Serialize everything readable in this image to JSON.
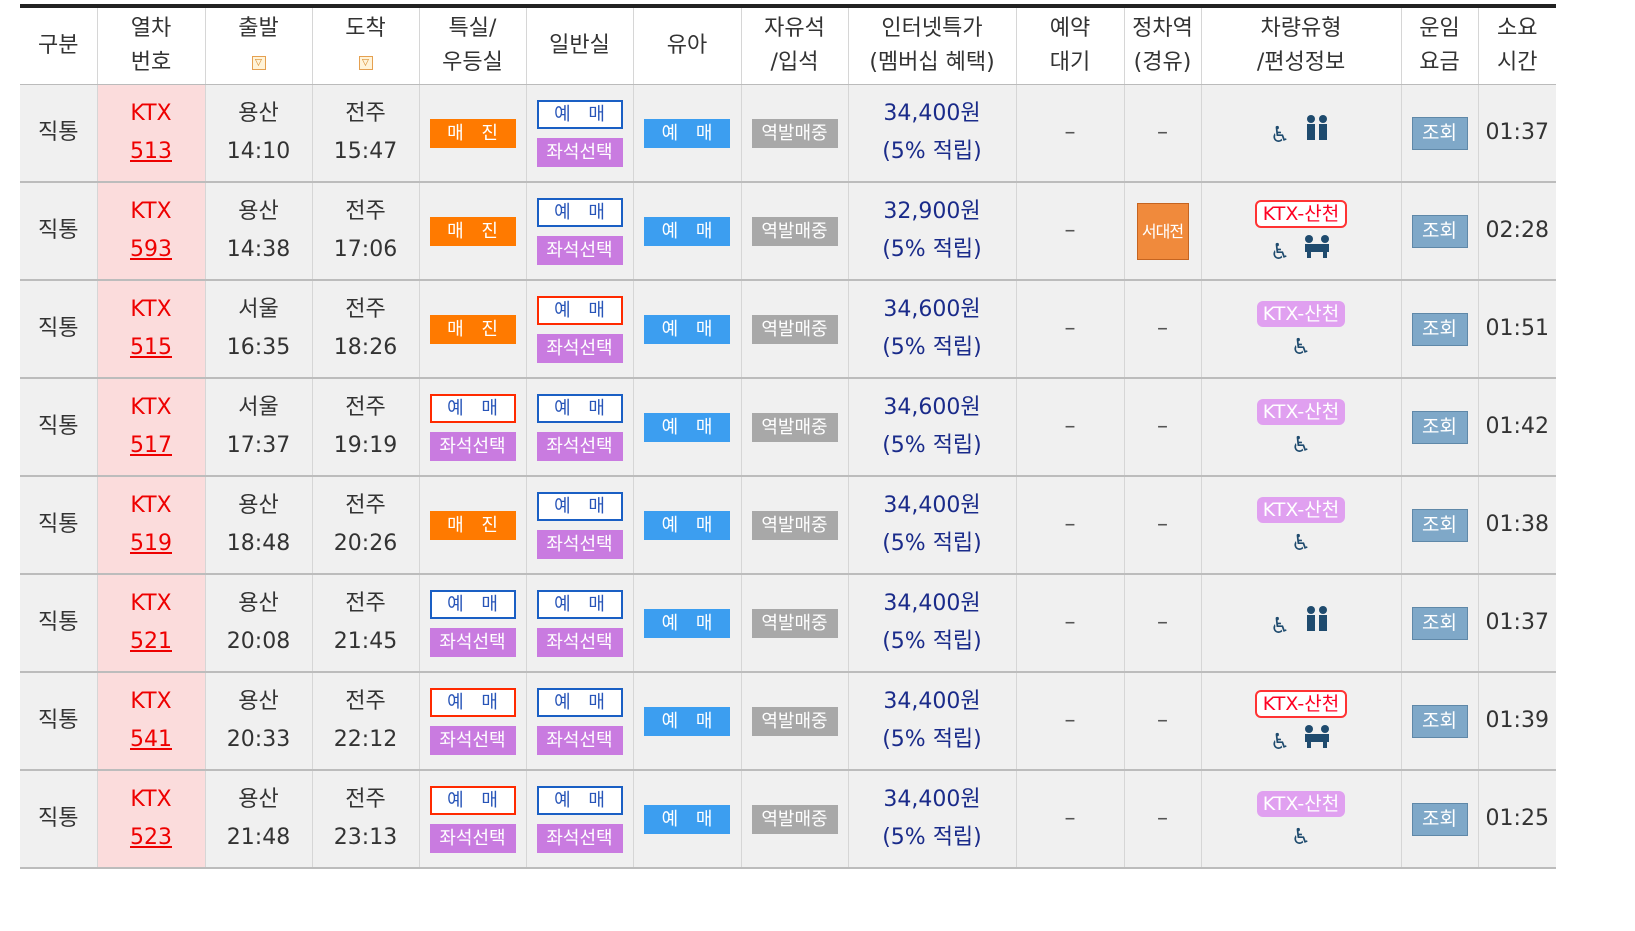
{
  "headers": {
    "division": "구분",
    "train_no": [
      "열차",
      "번호"
    ],
    "departure": "출발",
    "arrival": "도착",
    "special": [
      "특실/",
      "우등실"
    ],
    "general": "일반실",
    "infant": "유아",
    "free_seat": [
      "자유석",
      "/입석"
    ],
    "internet_price": [
      "인터넷특가",
      "(멤버십 혜택)"
    ],
    "waitlist": [
      "예약",
      "대기"
    ],
    "stop": [
      "정차역",
      "(경유)"
    ],
    "vehicle": [
      "차량유형",
      "/편성정보"
    ],
    "fare": [
      "운임",
      "요금"
    ],
    "duration": [
      "소요",
      "시간"
    ],
    "sort_icon": "▽"
  },
  "labels": {
    "sold_out": "매 진",
    "book": "예 매",
    "seat_select": "좌석선택",
    "station_sale": "역발매중",
    "lookup": "조회",
    "dash": "–",
    "wheelchair_icon": "♿",
    "family_icon": "👪"
  },
  "rows": [
    {
      "division": "직통",
      "train_type": "KTX",
      "train_no": "513",
      "dep_station": "용산",
      "dep_time": "14:10",
      "arr_station": "전주",
      "arr_time": "15:47",
      "special": "sold",
      "general": "blue",
      "price": "34,400원",
      "benefit": "(5% 적립)",
      "stop": "",
      "vehicle": "",
      "vehicle_style": "",
      "duration": "01:37",
      "icons": "wheel-family"
    },
    {
      "division": "직통",
      "train_type": "KTX",
      "train_no": "593",
      "dep_station": "용산",
      "dep_time": "14:38",
      "arr_station": "전주",
      "arr_time": "17:06",
      "special": "sold",
      "general": "blue",
      "price": "32,900원",
      "benefit": "(5% 적립)",
      "stop": "서대전",
      "vehicle": "KTX-산천",
      "vehicle_style": "red",
      "duration": "02:28",
      "icons": "wheel-meeting"
    },
    {
      "division": "직통",
      "train_type": "KTX",
      "train_no": "515",
      "dep_station": "서울",
      "dep_time": "16:35",
      "arr_station": "전주",
      "arr_time": "18:26",
      "special": "sold",
      "general": "red",
      "price": "34,600원",
      "benefit": "(5% 적립)",
      "stop": "",
      "vehicle": "KTX-산천",
      "vehicle_style": "purple",
      "duration": "01:51",
      "icons": "wheel"
    },
    {
      "division": "직통",
      "train_type": "KTX",
      "train_no": "517",
      "dep_station": "서울",
      "dep_time": "17:37",
      "arr_station": "전주",
      "arr_time": "19:19",
      "special": "red",
      "general": "blue",
      "price": "34,600원",
      "benefit": "(5% 적립)",
      "stop": "",
      "vehicle": "KTX-산천",
      "vehicle_style": "purple",
      "duration": "01:42",
      "icons": "wheel"
    },
    {
      "division": "직통",
      "train_type": "KTX",
      "train_no": "519",
      "dep_station": "용산",
      "dep_time": "18:48",
      "arr_station": "전주",
      "arr_time": "20:26",
      "special": "sold",
      "general": "blue",
      "price": "34,400원",
      "benefit": "(5% 적립)",
      "stop": "",
      "vehicle": "KTX-산천",
      "vehicle_style": "purple",
      "duration": "01:38",
      "icons": "wheel"
    },
    {
      "division": "직통",
      "train_type": "KTX",
      "train_no": "521",
      "dep_station": "용산",
      "dep_time": "20:08",
      "arr_station": "전주",
      "arr_time": "21:45",
      "special": "blue",
      "general": "blue",
      "price": "34,400원",
      "benefit": "(5% 적립)",
      "stop": "",
      "vehicle": "",
      "vehicle_style": "",
      "duration": "01:37",
      "icons": "wheel-family"
    },
    {
      "division": "직통",
      "train_type": "KTX",
      "train_no": "541",
      "dep_station": "용산",
      "dep_time": "20:33",
      "arr_station": "전주",
      "arr_time": "22:12",
      "special": "red",
      "general": "blue",
      "price": "34,400원",
      "benefit": "(5% 적립)",
      "stop": "",
      "vehicle": "KTX-산천",
      "vehicle_style": "red",
      "duration": "01:39",
      "icons": "wheel-meeting"
    },
    {
      "division": "직통",
      "train_type": "KTX",
      "train_no": "523",
      "dep_station": "용산",
      "dep_time": "21:48",
      "arr_station": "전주",
      "arr_time": "23:13",
      "special": "red",
      "general": "blue",
      "price": "34,400원",
      "benefit": "(5% 적립)",
      "stop": "",
      "vehicle": "KTX-산천",
      "vehicle_style": "purple",
      "duration": "01:25",
      "icons": "wheel"
    }
  ]
}
